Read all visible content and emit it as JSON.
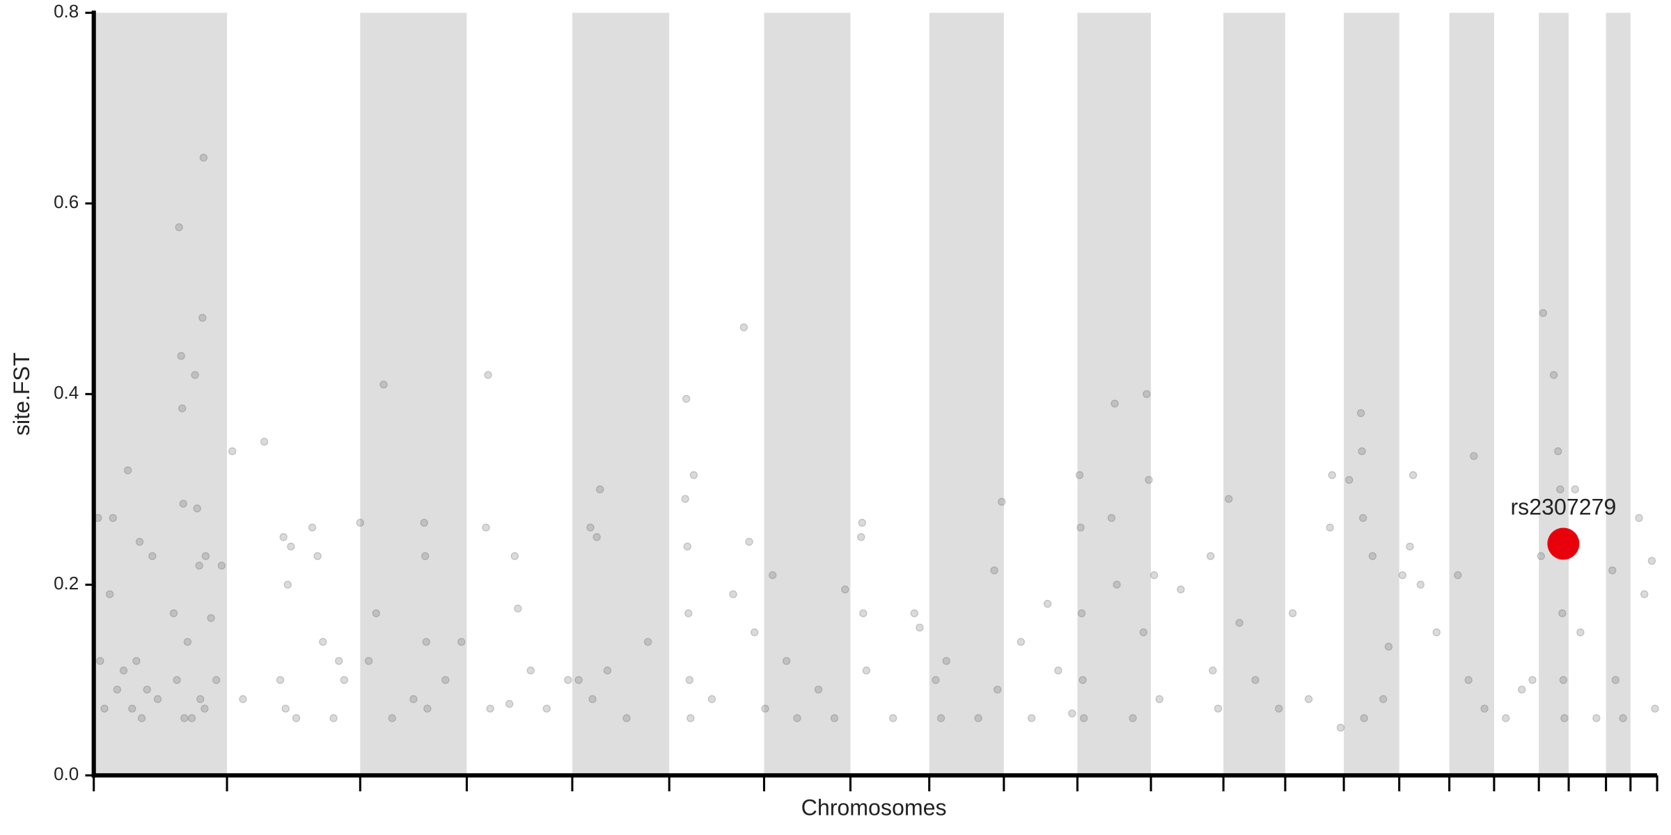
{
  "chart_data": {
    "type": "scatter",
    "x_label": "Chromosomes",
    "y_label": "site.FST",
    "xlim": [
      0,
      1467
    ],
    "ylim": [
      0,
      0.8
    ],
    "xticks": [
      0,
      125,
      250,
      350,
      449,
      540,
      629,
      710,
      784,
      854,
      923,
      992,
      1060,
      1118,
      1173,
      1225,
      1272,
      1314,
      1356,
      1384,
      1419,
      1442,
      1467
    ],
    "yticks": [
      {
        "value": 0,
        "label": "0.0"
      },
      0.2,
      0.4,
      0.6,
      0.8
    ],
    "band_shading": true,
    "band_color": "#dedede",
    "series": [
      {
        "color": "#555555",
        "x": [
          4,
          6,
          10,
          15,
          18,
          22,
          28,
          32,
          36,
          40,
          43,
          45,
          50,
          55,
          60,
          75,
          78,
          80,
          82,
          83,
          84,
          85,
          88,
          92,
          95,
          97,
          99,
          100,
          102,
          103,
          104,
          105,
          110,
          115,
          120,
          130,
          140,
          160,
          175,
          178,
          180,
          182,
          185,
          190,
          205,
          210,
          215,
          225,
          230,
          235,
          250,
          258,
          265,
          272,
          280,
          300,
          310,
          311,
          312,
          313,
          330,
          345,
          368,
          370,
          372,
          390,
          395,
          398,
          410,
          425,
          445,
          455,
          466,
          468,
          472,
          475,
          482,
          500,
          520,
          555,
          556,
          557,
          558,
          559,
          560,
          563,
          580,
          600,
          610,
          615,
          620,
          630,
          637,
          650,
          660,
          680,
          695,
          705,
          720,
          721,
          722,
          725,
          750,
          770,
          775,
          790,
          795,
          800,
          830,
          845,
          848,
          852,
          870,
          880,
          895,
          905,
          918,
          925,
          926,
          927,
          928,
          929,
          955,
          958,
          960,
          975,
          985,
          988,
          990,
          995,
          1000,
          1020,
          1048,
          1050,
          1055,
          1065,
          1075,
          1090,
          1112,
          1125,
          1140,
          1160,
          1162,
          1170,
          1178,
          1189,
          1190,
          1191,
          1192,
          1200,
          1210,
          1215,
          1228,
          1235,
          1238,
          1245,
          1260,
          1280,
          1290,
          1295,
          1305,
          1325,
          1340,
          1350,
          1358,
          1360,
          1370,
          1374,
          1376,
          1378,
          1379,
          1380,
          1390,
          1395,
          1410,
          1425,
          1428,
          1435,
          1450,
          1455,
          1462,
          1465
        ],
        "values": [
          0.27,
          0.12,
          0.07,
          0.19,
          0.27,
          0.09,
          0.11,
          0.32,
          0.07,
          0.12,
          0.245,
          0.06,
          0.09,
          0.23,
          0.08,
          0.17,
          0.1,
          0.575,
          0.44,
          0.385,
          0.285,
          0.06,
          0.14,
          0.06,
          0.42,
          0.28,
          0.22,
          0.08,
          0.48,
          0.648,
          0.07,
          0.23,
          0.165,
          0.1,
          0.22,
          0.34,
          0.08,
          0.35,
          0.1,
          0.25,
          0.07,
          0.2,
          0.24,
          0.06,
          0.26,
          0.23,
          0.14,
          0.06,
          0.12,
          0.1,
          0.265,
          0.12,
          0.17,
          0.41,
          0.06,
          0.08,
          0.265,
          0.23,
          0.14,
          0.07,
          0.1,
          0.14,
          0.26,
          0.42,
          0.07,
          0.075,
          0.23,
          0.175,
          0.11,
          0.07,
          0.1,
          0.1,
          0.26,
          0.08,
          0.25,
          0.3,
          0.11,
          0.06,
          0.14,
          0.29,
          0.395,
          0.24,
          0.17,
          0.1,
          0.06,
          0.315,
          0.08,
          0.19,
          0.47,
          0.245,
          0.15,
          0.07,
          0.21,
          0.12,
          0.06,
          0.09,
          0.06,
          0.195,
          0.25,
          0.265,
          0.17,
          0.11,
          0.06,
          0.17,
          0.155,
          0.1,
          0.06,
          0.12,
          0.06,
          0.215,
          0.09,
          0.287,
          0.14,
          0.06,
          0.18,
          0.11,
          0.065,
          0.315,
          0.26,
          0.17,
          0.1,
          0.06,
          0.27,
          0.39,
          0.2,
          0.06,
          0.15,
          0.4,
          0.31,
          0.21,
          0.08,
          0.195,
          0.23,
          0.11,
          0.07,
          0.29,
          0.16,
          0.1,
          0.07,
          0.17,
          0.08,
          0.26,
          0.315,
          0.05,
          0.31,
          0.38,
          0.34,
          0.27,
          0.06,
          0.23,
          0.08,
          0.135,
          0.21,
          0.24,
          0.315,
          0.2,
          0.15,
          0.21,
          0.1,
          0.335,
          0.07,
          0.06,
          0.09,
          0.1,
          0.23,
          0.485,
          0.42,
          0.34,
          0.3,
          0.17,
          0.1,
          0.06,
          0.3,
          0.15,
          0.06,
          0.215,
          0.1,
          0.06,
          0.27,
          0.19,
          0.225,
          0.07
        ]
      }
    ],
    "highlight": {
      "label": "rs2307279",
      "x": 1379,
      "y": 0.243,
      "color": "#e8000b"
    }
  }
}
